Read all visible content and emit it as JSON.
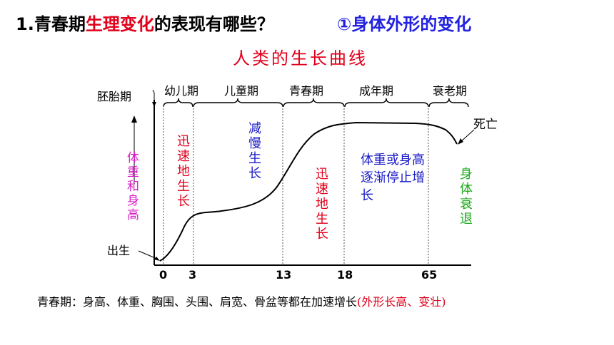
{
  "heading": {
    "prefix": "1.青春期",
    "highlight": "生理变化",
    "suffix": "的表现有哪些？",
    "sub": "①身体外形的变化"
  },
  "diagram": {
    "title": "人类的生长曲线",
    "y_label": "体重和身高",
    "embryo_label": "胚胎期",
    "stages": [
      "幼儿期",
      "儿童期",
      "青春期",
      "成年期",
      "衰老期"
    ],
    "birth_label": "出生",
    "death_label": "死亡",
    "phases": [
      "迅速地生长",
      "减慢生长",
      "迅速地生长",
      "体重或身高逐渐停止增长",
      "身体衰退"
    ],
    "x_ticks": [
      "0",
      "3",
      "13",
      "18",
      "65"
    ]
  },
  "footer": {
    "text": "青春期：身高、体重、胸围、头围、肩宽、骨盆等都在加速增长",
    "highlight": "(外形长高、变壮)"
  },
  "colors": {
    "red": "#e0001b",
    "blue": "#1a1ac9",
    "magenta": "#d61ec6",
    "green": "#1aa81a"
  }
}
